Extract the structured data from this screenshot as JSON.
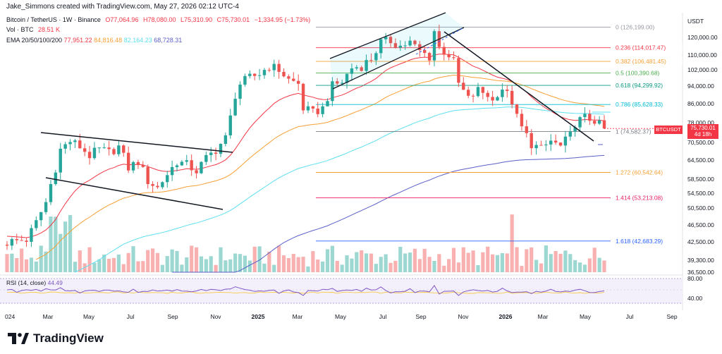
{
  "header": {
    "author_line": "Jake_Simmons created with TradingView.com, May 27, 2026 02:12 UTC-4"
  },
  "legend": {
    "pair": "Bitcoin / TetherUS · 1W · Binance",
    "open": "O77,064.96",
    "high": "H78,080.00",
    "low": "L75,310.90",
    "close": "C75,730.01",
    "change": "−1,334.95 (−1.73%)",
    "vol_label": "Vol · BTC",
    "vol_value": "28.51 K",
    "ema_label": "EMA 20/50/100/200",
    "ema20": "77,951.22",
    "ema50": "84,816.48",
    "ema100": "82,164.23",
    "ema200": "68,728.31"
  },
  "colors": {
    "up": "#26a69a",
    "down": "#ef5350",
    "ema20": "#f23645",
    "ema50": "#f7a035",
    "ema100": "#5ce0f0",
    "ema200": "#5b5fc7"
  },
  "axis": {
    "currency": "USDT",
    "price_ticks": [
      "120,000.00",
      "110,000.00",
      "102,000.00",
      "94,000.00",
      "86,000.00",
      "78,000.00",
      "70,500.00",
      "64,500.00",
      "58,500.00",
      "54,500.00",
      "50,500.00",
      "46,500.00",
      "42,500.00",
      "39,300.00",
      "36,500.00"
    ],
    "time_ticks": [
      "024",
      "Mar",
      "May",
      "Jul",
      "Sep",
      "Nov",
      "2025",
      "Mar",
      "May",
      "Jul",
      "Sep",
      "Nov",
      "2026",
      "Mar",
      "May",
      "Jul",
      "Sep"
    ],
    "rsi_ticks": [
      "80.00",
      "40.00"
    ]
  },
  "fib_levels": [
    {
      "label": "0 (126,199.00)",
      "color": "#9598a1"
    },
    {
      "label": "0.236 (114,017.47)",
      "color": "#f23645"
    },
    {
      "label": "0.382 (106,481.45)",
      "color": "#f7a035"
    },
    {
      "label": "0.5 (100,390.68)",
      "color": "#4caf50"
    },
    {
      "label": "0.618 (94,299.92)",
      "color": "#089981"
    },
    {
      "label": "0.786 (85,628.33)",
      "color": "#00bcd4"
    },
    {
      "label": "1 (74,582.37)",
      "color": "#787b86"
    },
    {
      "label": "1.272 (60,542.64)",
      "color": "#f7a035"
    },
    {
      "label": "1.414 (53,213.08)",
      "color": "#e91e63"
    },
    {
      "label": "1.618 (42,683.29)",
      "color": "#2962ff"
    }
  ],
  "price_tag": {
    "symbol": "BTCUSDT",
    "price": "75,730.01",
    "countdown": "4d 18h"
  },
  "rsi": {
    "label": "RSI (14, close)",
    "value": "44.49"
  },
  "branding": {
    "name": "TradingView"
  },
  "chart_data": {
    "type": "candlestick",
    "title": "Bitcoin / TetherUS · 1W · Binance",
    "ylim": [
      36500,
      126199
    ],
    "x": [
      "2024-01",
      "2024-03",
      "2024-05",
      "2024-07",
      "2024-09",
      "2024-11",
      "2025-01",
      "2025-03",
      "2025-05",
      "2025-07",
      "2025-09",
      "2025-11",
      "2026-01",
      "2026-03",
      "2026-05"
    ],
    "close_approx": [
      42500,
      68000,
      66000,
      58000,
      60000,
      94000,
      102000,
      84000,
      104000,
      117000,
      114000,
      92000,
      78000,
      70500,
      75730
    ],
    "series": [
      {
        "name": "EMA 20",
        "last": 77951.22
      },
      {
        "name": "EMA 50",
        "last": 84816.48
      },
      {
        "name": "EMA 100",
        "last": 82164.23
      },
      {
        "name": "EMA 200",
        "last": 68728.31
      }
    ]
  }
}
